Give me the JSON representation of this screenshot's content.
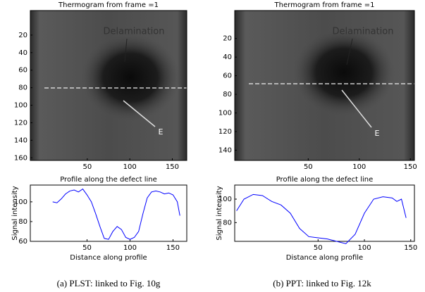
{
  "chart_data": [
    {
      "type": "image",
      "title": "Thermogram from frame =1",
      "xlim": [
        -17,
        167
      ],
      "ylim": [
        -8,
        163
      ],
      "xticks": [
        50,
        100,
        150
      ],
      "yticks": [
        20,
        40,
        60,
        80,
        100,
        120,
        140,
        160
      ],
      "annotations": [
        "Delamination",
        "E"
      ]
    },
    {
      "type": "line",
      "title": "Profile along the defect line",
      "xlabel": "Distance along profile",
      "ylabel": "Signal intensity",
      "color": "#0000ff",
      "xlim": [
        -16,
        166
      ],
      "ylim": [
        60,
        117
      ],
      "xticks": [
        50,
        100,
        150
      ],
      "yticks": [
        60,
        80,
        100
      ],
      "x": [
        10,
        15,
        20,
        25,
        30,
        35,
        40,
        45,
        50,
        55,
        60,
        65,
        70,
        75,
        80,
        85,
        90,
        95,
        100,
        105,
        110,
        115,
        120,
        125,
        130,
        135,
        140,
        145,
        150,
        155,
        158
      ],
      "values": [
        100,
        99,
        103,
        108,
        111,
        112,
        110,
        113,
        107,
        100,
        88,
        75,
        63,
        62,
        70,
        75,
        72,
        64,
        62,
        64,
        70,
        88,
        104,
        110,
        111,
        110,
        108,
        109,
        107,
        100,
        86
      ]
    },
    {
      "type": "image",
      "title": "Thermogram from frame =1",
      "xlim": [
        -22,
        154
      ],
      "ylim": [
        -10,
        151
      ],
      "xticks": [
        50,
        100,
        150
      ],
      "yticks": [
        20,
        40,
        60,
        80,
        100,
        120,
        140
      ],
      "annotations": [
        "Delamination",
        "E"
      ]
    },
    {
      "type": "line",
      "title": "Profile along the defect line",
      "xlabel": "Distance along profile",
      "ylabel": "Signal intensity",
      "color": "#0000ff",
      "xlim": [
        -40,
        154
      ],
      "ylim": [
        64,
        112
      ],
      "xticks": [
        50,
        100,
        150
      ],
      "yticks": [
        80,
        100
      ],
      "x": [
        -38,
        -30,
        -20,
        -10,
        0,
        10,
        20,
        30,
        40,
        50,
        60,
        70,
        80,
        90,
        100,
        110,
        120,
        130,
        135,
        140,
        145
      ],
      "values": [
        90,
        100,
        104,
        103,
        98,
        95,
        88,
        75,
        68,
        67,
        66,
        64,
        62,
        70,
        88,
        100,
        102,
        101,
        98,
        100,
        84
      ]
    }
  ],
  "captions": [
    "(a) PLST: linked to Fig. 10g",
    "(b) PPT: linked to Fig. 12k"
  ]
}
